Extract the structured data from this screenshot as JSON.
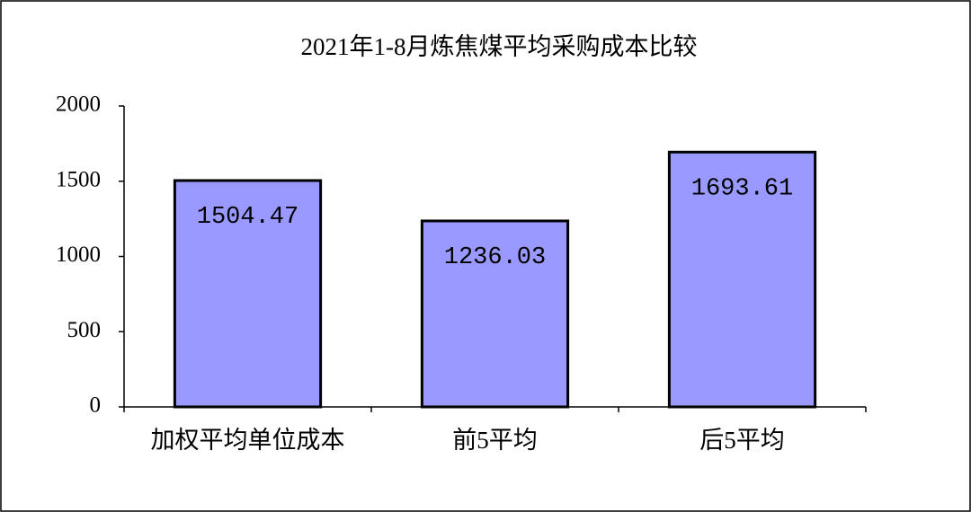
{
  "chart_data": {
    "type": "bar",
    "title": "2021年1-8月炼焦煤平均采购成本比较",
    "categories": [
      "加权平均单位成本",
      "前5平均",
      "后5平均"
    ],
    "values": [
      1504.47,
      1236.03,
      1693.61
    ],
    "color": "#9999ff",
    "ylim": [
      0,
      2000
    ],
    "yticks": [
      0,
      500,
      1000,
      1500,
      2000
    ]
  }
}
